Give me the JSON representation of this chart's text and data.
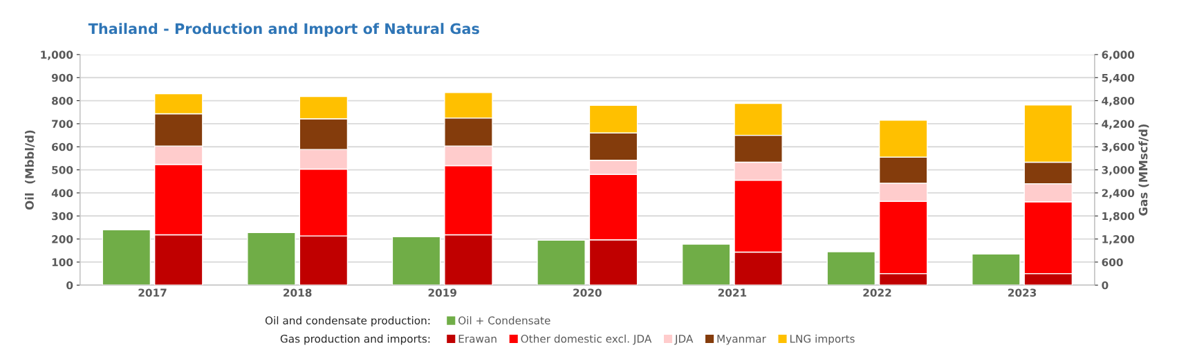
{
  "chart_data": {
    "type": "bar",
    "title": "Thailand - Production and Import of Natural Gas",
    "ylabel": "Oil  (Mbbl/d)",
    "y2label": "Gas (MMscf/d)",
    "categories": [
      "2017",
      "2018",
      "2019",
      "2020",
      "2021",
      "2022",
      "2023"
    ],
    "stacked": true,
    "grid": "y",
    "legend": "bottom",
    "annotations": [
      "Oil and condensate production:",
      "Gas production and imports:"
    ],
    "ylim": [
      0,
      1000
    ],
    "yticks": [
      0,
      100,
      200,
      300,
      400,
      500,
      600,
      700,
      800,
      900,
      {
        "value": 1000,
        "label": "1,000"
      }
    ],
    "y2lim": [
      0,
      6000
    ],
    "y2ticks": [
      0,
      600,
      {
        "value": 1200,
        "label": "1,200"
      },
      {
        "value": 1800,
        "label": "1,800"
      },
      {
        "value": 2400,
        "label": "2,400"
      },
      {
        "value": 3000,
        "label": "3,000"
      },
      {
        "value": 3600,
        "label": "3,600"
      },
      {
        "value": 4200,
        "label": "4,200"
      },
      {
        "value": 4800,
        "label": "4,800"
      },
      {
        "value": 5400,
        "label": "5,400"
      },
      {
        "value": 6000,
        "label": "6,000"
      }
    ],
    "series": [
      {
        "name": "Oil + Condensate",
        "color": "#70ad47",
        "axis": "y",
        "values": [
          240,
          228,
          210,
          195,
          178,
          145,
          135
        ]
      },
      {
        "name": "Erawan",
        "color": "#c00000",
        "axis": "y2",
        "values": [
          1310,
          1280,
          1310,
          1180,
          860,
          300,
          300
        ]
      },
      {
        "name": "Other domestic excl. JDA",
        "color": "#ff0000",
        "axis": "y2",
        "values": [
          1830,
          1740,
          1800,
          1700,
          1870,
          1880,
          1870
        ]
      },
      {
        "name": "JDA",
        "color": "#ffcccc",
        "axis": "y2",
        "values": [
          480,
          510,
          510,
          370,
          470,
          470,
          470
        ]
      },
      {
        "name": "Myanmar",
        "color": "#843c0c",
        "axis": "y2",
        "values": [
          840,
          800,
          730,
          710,
          700,
          680,
          560
        ]
      },
      {
        "name": "LNG imports",
        "color": "#ffc000",
        "axis": "y2",
        "values": [
          520,
          580,
          660,
          720,
          830,
          960,
          1490
        ]
      }
    ]
  }
}
